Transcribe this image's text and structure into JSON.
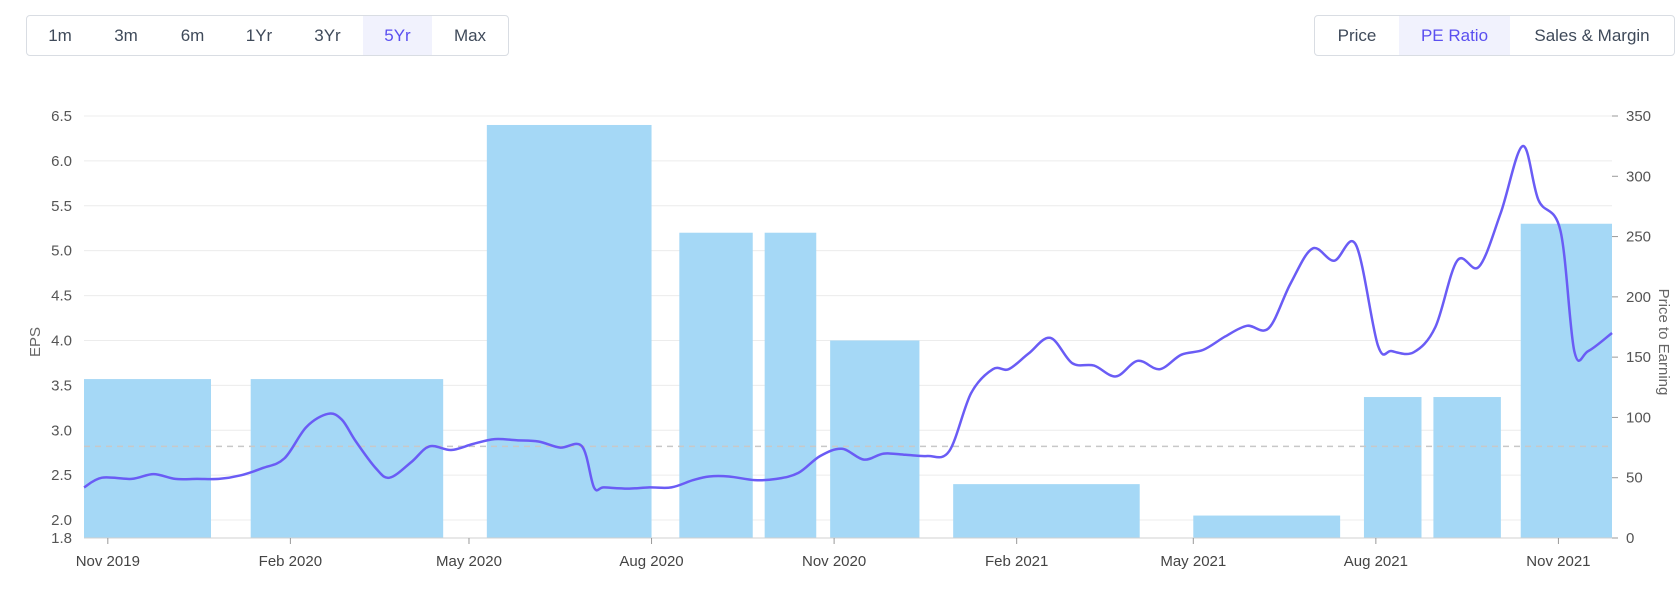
{
  "range_buttons": [
    {
      "label": "1m",
      "active": false
    },
    {
      "label": "3m",
      "active": false
    },
    {
      "label": "6m",
      "active": false
    },
    {
      "label": "1Yr",
      "active": false
    },
    {
      "label": "3Yr",
      "active": false
    },
    {
      "label": "5Yr",
      "active": true
    },
    {
      "label": "Max",
      "active": false
    }
  ],
  "view_buttons": [
    {
      "label": "Price",
      "active": false
    },
    {
      "label": "PE Ratio",
      "active": true
    },
    {
      "label": "Sales & Margin",
      "active": false
    }
  ],
  "colors": {
    "bar": "#a5d8f6",
    "line": "#6a5cf5",
    "active_text": "#5a4ff0",
    "active_bg": "#f1f2fd",
    "ref_line": "#c8c8c8"
  },
  "chart_data": {
    "type": "bar+line",
    "title": "",
    "ylabel_left": "EPS",
    "ylabel_right": "Price to Earning",
    "x_range": [
      "2019-10-20",
      "2021-11-28"
    ],
    "y_left_range": [
      1.8,
      6.5
    ],
    "y_left_ticks": [
      "1.8",
      "2.0",
      "2.5",
      "3.0",
      "3.5",
      "4.0",
      "4.5",
      "5.0",
      "5.5",
      "6.0",
      "6.5"
    ],
    "y_right_range": [
      0,
      350
    ],
    "y_right_ticks": [
      "0",
      "50",
      "100",
      "150",
      "200",
      "250",
      "300",
      "350"
    ],
    "x_ticks": [
      {
        "date": "2019-11-01",
        "label": "Nov 2019"
      },
      {
        "date": "2020-02-01",
        "label": "Feb 2020"
      },
      {
        "date": "2020-05-01",
        "label": "May 2020"
      },
      {
        "date": "2020-08-01",
        "label": "Aug 2020"
      },
      {
        "date": "2020-11-01",
        "label": "Nov 2020"
      },
      {
        "date": "2021-02-01",
        "label": "Feb 2021"
      },
      {
        "date": "2021-05-01",
        "label": "May 2021"
      },
      {
        "date": "2021-08-01",
        "label": "Aug 2021"
      },
      {
        "date": "2021-11-01",
        "label": "Nov 2021"
      }
    ],
    "eps_bars": [
      {
        "start": "2019-10-20",
        "end": "2019-12-23",
        "value": 3.57
      },
      {
        "start": "2020-01-12",
        "end": "2020-04-18",
        "value": 3.57
      },
      {
        "start": "2020-05-10",
        "end": "2020-08-01",
        "value": 6.4
      },
      {
        "start": "2020-08-15",
        "end": "2020-09-21",
        "value": 5.2
      },
      {
        "start": "2020-09-27",
        "end": "2020-10-23",
        "value": 5.2
      },
      {
        "start": "2020-10-30",
        "end": "2020-12-14",
        "value": 4.0
      },
      {
        "start": "2020-12-31",
        "end": "2021-04-04",
        "value": 2.4
      },
      {
        "start": "2021-05-01",
        "end": "2021-07-14",
        "value": 2.05
      },
      {
        "start": "2021-07-26",
        "end": "2021-08-24",
        "value": 3.37
      },
      {
        "start": "2021-08-30",
        "end": "2021-10-03",
        "value": 3.37
      },
      {
        "start": "2021-10-13",
        "end": "2021-11-28",
        "value": 5.3
      }
    ],
    "reference_line_pe": 76,
    "pe_series": {
      "x": [
        "2019-10-20",
        "2019-10-29",
        "2019-11-13",
        "2019-11-24",
        "2019-12-05",
        "2019-12-16",
        "2019-12-27",
        "2020-01-07",
        "2020-01-18",
        "2020-01-29",
        "2020-02-09",
        "2020-02-20",
        "2020-02-27",
        "2020-03-05",
        "2020-03-15",
        "2020-03-22",
        "2020-04-02",
        "2020-04-11",
        "2020-04-22",
        "2020-05-03",
        "2020-05-14",
        "2020-05-25",
        "2020-06-05",
        "2020-06-16",
        "2020-06-27",
        "2020-07-03",
        "2020-07-08",
        "2020-07-20",
        "2020-07-31",
        "2020-08-11",
        "2020-08-22",
        "2020-08-30",
        "2020-09-09",
        "2020-09-22",
        "2020-10-03",
        "2020-10-14",
        "2020-10-25",
        "2020-11-05",
        "2020-11-16",
        "2020-11-26",
        "2020-12-07",
        "2020-12-18",
        "2020-12-29",
        "2021-01-09",
        "2021-01-20",
        "2021-01-28",
        "2021-02-07",
        "2021-02-18",
        "2021-03-01",
        "2021-03-12",
        "2021-03-23",
        "2021-04-03",
        "2021-04-14",
        "2021-04-25",
        "2021-05-06",
        "2021-05-17",
        "2021-05-28",
        "2021-06-08",
        "2021-06-19",
        "2021-06-30",
        "2021-07-11",
        "2021-07-22",
        "2021-08-02",
        "2021-08-09",
        "2021-08-20",
        "2021-08-31",
        "2021-09-11",
        "2021-09-22",
        "2021-10-03",
        "2021-10-14",
        "2021-10-22",
        "2021-11-02",
        "2021-11-09",
        "2021-11-16",
        "2021-11-28"
      ],
      "y": [
        42,
        50,
        49,
        53,
        49,
        49,
        49,
        52,
        58,
        66,
        92,
        103,
        98,
        80,
        58,
        50,
        63,
        76,
        73,
        78,
        82,
        81,
        80,
        75,
        76,
        42,
        42,
        41,
        42,
        42,
        48,
        51,
        51,
        48,
        49,
        54,
        68,
        74,
        65,
        70,
        69,
        68,
        72,
        120,
        140,
        140,
        153,
        166,
        145,
        143,
        134,
        147,
        140,
        152,
        156,
        167,
        176,
        174,
        211,
        240,
        230,
        243,
        160,
        155,
        154,
        175,
        230,
        225,
        270,
        325,
        280,
        255,
        155,
        155,
        170
      ]
    }
  }
}
